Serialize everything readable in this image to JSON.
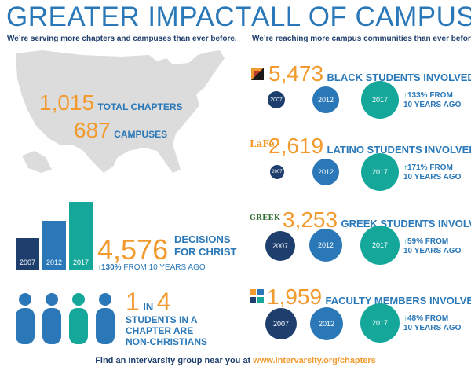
{
  "left": {
    "title": "GREATER IMPACT",
    "subtitle": "We’re serving more chapters and campuses than ever before.",
    "chapters": {
      "number": "1,015",
      "label": "TOTAL CHAPTERS"
    },
    "campuses": {
      "number": "687",
      "label": "CAMPUSES"
    },
    "decisions": {
      "bars": [
        {
          "year": "2007",
          "color": "#1e3f6d"
        },
        {
          "year": "2012",
          "color": "#2a78b8"
        },
        {
          "year": "2017",
          "color": "#15a79a"
        }
      ],
      "number": "4,576",
      "label_line1": "DECISIONS",
      "label_line2": "FOR CHRIST",
      "growth_pct": "130%",
      "growth_text": "FROM 10 YEARS AGO"
    },
    "ratio": {
      "one": "1",
      "in": "IN",
      "four": "4",
      "line1": "STUDENTS IN A",
      "line2": "CHAPTER ARE",
      "line3": "NON-CHRISTIANS",
      "people_colors": [
        "#2a78b8",
        "#2a78b8",
        "#15a79a",
        "#2a78b8"
      ]
    }
  },
  "right": {
    "title": "ALL OF CAMPUS",
    "subtitle": "We’re reaching more campus communities than ever before.",
    "groups": [
      {
        "icon": "black-students-logo-icon",
        "number": "5,473",
        "label": "BLACK STUDENTS INVOLVED",
        "growth_pct": "133% FROM",
        "growth_text": "10 YEARS AGO",
        "years": [
          "2007",
          "2012",
          "2017"
        ]
      },
      {
        "icon": "lafe-logo-icon",
        "logo_text": "LaFe",
        "number": "2,619",
        "label": "LATINO STUDENTS INVOLVED",
        "growth_pct": "171% FROM",
        "growth_text": "10 YEARS AGO",
        "years": [
          "2007",
          "2012",
          "2017"
        ]
      },
      {
        "icon": "greek-logo-icon",
        "logo_text": "GREEK",
        "number": "3,253",
        "label": "GREEK STUDENTS INVOLVED",
        "growth_pct": "59% FROM",
        "growth_text": "10 YEARS AGO",
        "years": [
          "2007",
          "2012",
          "2017"
        ]
      },
      {
        "icon": "faculty-logo-icon",
        "number": "1,959",
        "label": "FACULTY MEMBERS INVOLVED",
        "growth_pct": "48% FROM",
        "growth_text": "10 YEARS AGO",
        "years": [
          "2007",
          "2012",
          "2017"
        ]
      }
    ]
  },
  "footer": {
    "text": "Find an InterVarsity group near you at",
    "link": "www.intervarsity.org/chapters"
  },
  "colors": {
    "navy": "#1e3f6d",
    "blue": "#2a78b8",
    "teal": "#15a79a",
    "orange": "#f29a2e",
    "map": "#dcdcdc"
  }
}
